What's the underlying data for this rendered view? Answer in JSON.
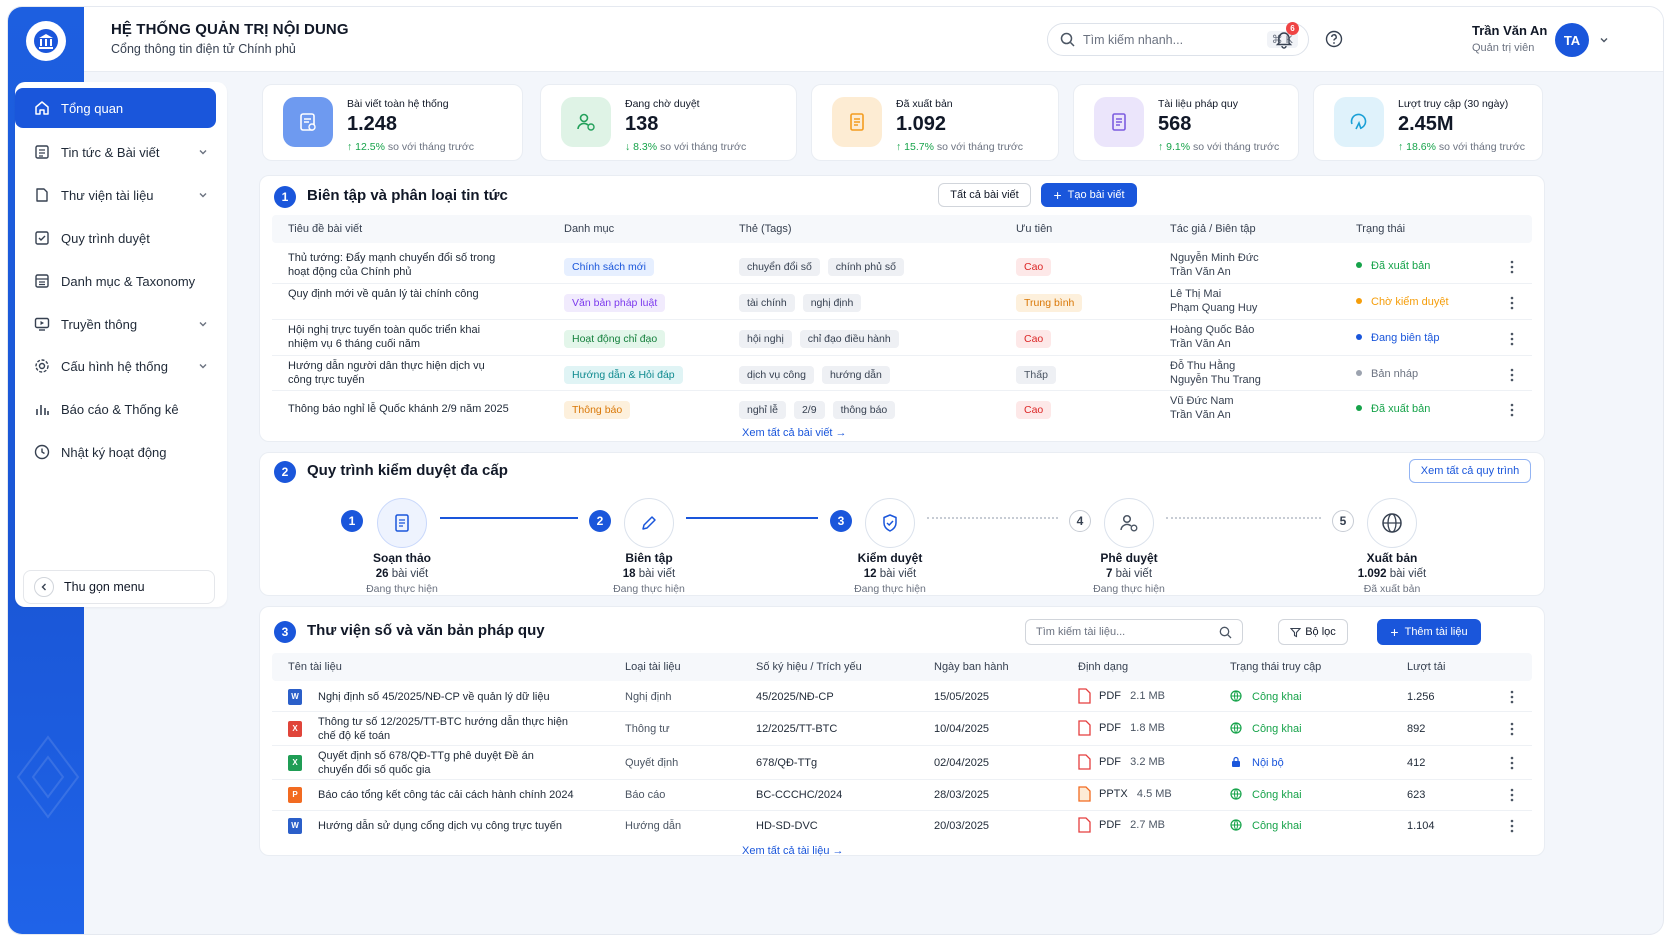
{
  "header": {
    "title": "HỆ THỐNG QUẢN TRỊ NỘI DUNG",
    "subtitle": "Cổng thông tin điện tử Chính phủ",
    "search_placeholder": "Tìm kiếm nhanh...",
    "search_shortcut": "⌘ K",
    "notification_count": "6",
    "user_name": "Trần Văn An",
    "user_role": "Quản trị viên",
    "user_initials": "TA"
  },
  "sidebar": {
    "items": [
      {
        "label": "Tổng quan",
        "icon": "home-icon"
      },
      {
        "label": "Tin tức & Bài viết",
        "icon": "news-icon"
      },
      {
        "label": "Thư viện tài liệu",
        "icon": "folder-icon"
      },
      {
        "label": "Quy trình duyệt",
        "icon": "checklist-icon"
      },
      {
        "label": "Danh mục & Taxonomy",
        "icon": "category-icon"
      },
      {
        "label": "Truyền thông",
        "icon": "media-icon"
      },
      {
        "label": "Cấu hình hệ thống",
        "icon": "gear-icon"
      },
      {
        "label": "Báo cáo & Thống kê",
        "icon": "bar-chart-icon"
      },
      {
        "label": "Nhật ký hoạt động",
        "icon": "clock-icon"
      }
    ],
    "collapse_label": "Thu gọn menu"
  },
  "stats": [
    {
      "label": "Bài viết toàn hệ thống",
      "value": "1.248",
      "trend": "12.5%",
      "trend_dir": "up",
      "trend_text": "so với tháng trước",
      "color": "#5b8def"
    },
    {
      "label": "Đang chờ duyệt",
      "value": "138",
      "trend": "8.3%",
      "trend_dir": "down",
      "trend_text": "so với tháng trước",
      "color": "#22a05a"
    },
    {
      "label": "Đã xuất bản",
      "value": "1.092",
      "trend": "15.7%",
      "trend_dir": "up",
      "trend_text": "so với tháng trước",
      "color": "#f39c1f"
    },
    {
      "label": "Tài liệu pháp quy",
      "value": "568",
      "trend": "9.1%",
      "trend_dir": "up",
      "trend_text": "so với tháng trước",
      "color": "#7c5ce0"
    },
    {
      "label": "Lượt truy cập (30 ngày)",
      "value": "2.45M",
      "trend": "18.6%",
      "trend_dir": "up",
      "trend_text": "so với tháng trước",
      "color": "#1aa0d6"
    }
  ],
  "news": {
    "num": "1",
    "title": "Biên tập và phân loại tin tức",
    "btn_all": "Tất cả bài viết",
    "btn_create": "Tạo bài viết",
    "columns": [
      "Tiêu đề bài viết",
      "Danh mục",
      "Thẻ (Tags)",
      "Ưu tiên",
      "Tác giả / Biên tập",
      "Trạng thái"
    ],
    "rows": [
      {
        "title1": "Thủ tướng: Đẩy mạnh chuyển đổi số trong",
        "title2": "hoạt động của Chính phủ",
        "category": "Chính sách mới",
        "tag1": "chuyển đổi số",
        "tag2": "chính phủ số",
        "tag3": "",
        "priority": "Cao",
        "author": "Nguyễn Minh Đức",
        "editor": "Trần Văn An",
        "status": "Đã xuất bản"
      },
      {
        "title1": "Quy định mới về quản lý tài chính công",
        "title2": "",
        "category": "Văn bản pháp luật",
        "tag1": "tài chính",
        "tag2": "nghị định",
        "tag3": "",
        "priority": "Trung bình",
        "author": "Lê Thị Mai",
        "editor": "Phạm Quang Huy",
        "status": "Chờ kiểm duyệt"
      },
      {
        "title1": "Hội nghị trực tuyến toàn quốc triển khai",
        "title2": "nhiệm vụ 6 tháng cuối năm",
        "category": "Hoạt động chỉ đạo",
        "tag1": "hội nghị",
        "tag2": "chỉ đạo điều hành",
        "tag3": "",
        "priority": "Cao",
        "author": "Hoàng Quốc Bảo",
        "editor": "Trần Văn An",
        "status": "Đang biên tập"
      },
      {
        "title1": "Hướng dẫn người dân thực hiện dịch vụ",
        "title2": "công trực tuyến",
        "category": "Hướng dẫn & Hỏi đáp",
        "tag1": "dịch vụ công",
        "tag2": "hướng dẫn",
        "tag3": "",
        "priority": "Thấp",
        "author": "Đỗ Thu Hằng",
        "editor": "Nguyễn Thu Trang",
        "status": "Bản nháp"
      },
      {
        "title1": "Thông báo nghỉ lễ Quốc khánh 2/9 năm 2025",
        "title2": "",
        "category": "Thông báo",
        "tag1": "nghỉ lễ",
        "tag2": "2/9",
        "tag3": "thông báo",
        "priority": "Cao",
        "author": "Vũ Đức Nam",
        "editor": "Trần Văn An",
        "status": "Đã xuất bản"
      }
    ],
    "view_all": "Xem tất cả bài viết →"
  },
  "workflow": {
    "num": "2",
    "title": "Quy trình kiểm duyệt đa cấp",
    "btn_all": "Xem tất cả quy trình",
    "steps": [
      {
        "num": "1",
        "title": "Soạn thảo",
        "count": "26",
        "unit": "bài viết",
        "status": "Đang thực hiện"
      },
      {
        "num": "2",
        "title": "Biên tập",
        "count": "18",
        "unit": "bài viết",
        "status": "Đang thực hiện"
      },
      {
        "num": "3",
        "title": "Kiểm duyệt",
        "count": "12",
        "unit": "bài viết",
        "status": "Đang thực hiện"
      },
      {
        "num": "4",
        "title": "Phê duyệt",
        "count": "7",
        "unit": "bài viết",
        "status": "Đang thực hiện"
      },
      {
        "num": "5",
        "title": "Xuất bản",
        "count": "1.092",
        "unit": "bài viết",
        "status": "Đã xuất bản"
      }
    ]
  },
  "library": {
    "num": "3",
    "title": "Thư viện số và văn bản pháp quy",
    "search_placeholder": "Tìm kiếm tài liệu...",
    "btn_filter": "Bộ lọc",
    "btn_add": "Thêm tài liệu",
    "columns": [
      "Tên tài liệu",
      "Loại tài liệu",
      "Số ký hiệu / Trích yếu",
      "Ngày ban hành",
      "Định dạng",
      "Trạng thái truy cập",
      "Lượt tải"
    ],
    "rows": [
      {
        "icon": "W",
        "name1": "Nghị định số 45/2025/NĐ-CP về quản lý dữ liệu",
        "name2": "",
        "type": "Nghị định",
        "code": "45/2025/NĐ-CP",
        "date": "15/05/2025",
        "format": "PDF",
        "size": "2.1 MB",
        "access": "Công khai",
        "downloads": "1.256"
      },
      {
        "icon": "X",
        "name1": "Thông tư số 12/2025/TT-BTC hướng dẫn thực hiện",
        "name2": "chế độ kế toán",
        "type": "Thông tư",
        "code": "12/2025/TT-BTC",
        "date": "10/04/2025",
        "format": "PDF",
        "size": "1.8 MB",
        "access": "Công khai",
        "downloads": "892"
      },
      {
        "icon": "X",
        "name1": "Quyết định số 678/QĐ-TTg phê duyệt Đề án",
        "name2": "chuyển đổi số quốc gia",
        "type": "Quyết định",
        "code": "678/QĐ-TTg",
        "date": "02/04/2025",
        "format": "PDF",
        "size": "3.2 MB",
        "access": "Nội bộ",
        "downloads": "412"
      },
      {
        "icon": "P",
        "name1": "Báo cáo tổng kết công tác cải cách hành chính 2024",
        "name2": "",
        "type": "Báo cáo",
        "code": "BC-CCCHC/2024",
        "date": "28/03/2025",
        "format": "PPTX",
        "size": "4.5 MB",
        "access": "Công khai",
        "downloads": "623"
      },
      {
        "icon": "W",
        "name1": "Hướng dẫn sử dụng cổng dịch vụ công trực tuyến",
        "name2": "",
        "type": "Hướng dẫn",
        "code": "HD-SD-DVC",
        "date": "20/03/2025",
        "format": "PDF",
        "size": "2.7 MB",
        "access": "Công khai",
        "downloads": "1.104"
      }
    ],
    "view_all": "Xem tất cả tài liệu →"
  }
}
